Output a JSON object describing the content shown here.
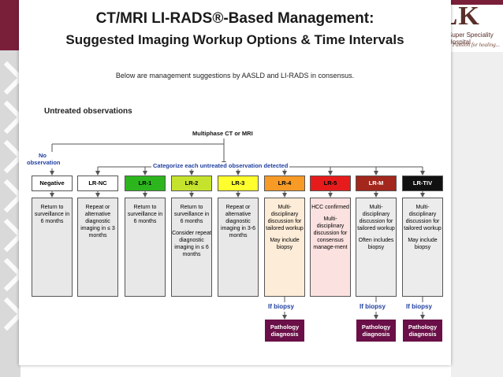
{
  "logo": {
    "text": "BLK",
    "subtitle": "Super Speciality Hospital",
    "tagline": "A Passion for healing..."
  },
  "title_line1": "CT/MRI LI-RADS®-Based Management:",
  "title_line2": "Suggested Imaging Workup Options & Time Intervals",
  "subtitle": "Below are management suggestions by AASLD and LI-RADS in consensus.",
  "section_title": "Untreated observations",
  "root_label": "Multiphase CT or MRI",
  "no_observation_label": "No observation",
  "categorize_label": "Categorize each untreated observation detected",
  "categories": [
    {
      "label": "Negative",
      "bg": "#ffffff",
      "fg": "#000000",
      "lines": [
        "Return to surveillance in 6 months"
      ]
    },
    {
      "label": "LR-NC",
      "bg": "#ffffff",
      "fg": "#000000",
      "lines": [
        "Repeat or alternative diagnostic imaging in ≤ 3 months"
      ]
    },
    {
      "label": "LR-1",
      "bg": "#2db51e",
      "fg": "#000000",
      "lines": [
        "Return to surveillance in 6 months"
      ]
    },
    {
      "label": "LR-2",
      "bg": "#c5e32c",
      "fg": "#000000",
      "lines": [
        "Return to surveillance in 6 months",
        "Consider repeat diagnostic imaging in ≤ 6 months"
      ]
    },
    {
      "label": "LR-3",
      "bg": "#ffff2e",
      "fg": "#000000",
      "lines": [
        "Repeat or alternative diagnostic imaging in 3-6 months"
      ]
    },
    {
      "label": "LR-4",
      "bg": "#f79a26",
      "fg": "#000000",
      "lines": [
        "Multi-disciplinary discussion for tailored workup",
        "May include biopsy"
      ]
    },
    {
      "label": "LR-5",
      "bg": "#e61c1c",
      "fg": "#000000",
      "lines": [
        "HCC confirmed",
        "Multi-disciplinary discussion for consensus manage-ment"
      ]
    },
    {
      "label": "LR-M",
      "bg": "#a3271d",
      "fg": "#ffffff",
      "lines": [
        "Multi-disciplinary discussion for tailored workup",
        "Often includes biopsy"
      ]
    },
    {
      "label": "LR-TIV",
      "bg": "#111111",
      "fg": "#ffffff",
      "lines": [
        "Multi-disciplinary discussion for tailored workup",
        "May include biopsy"
      ]
    }
  ],
  "colors": {
    "frame_top": "#7a1f3a",
    "arrow_blue": "#1f3f9f",
    "pathology_box": "#6a0f47",
    "body_negative_lr3": "#e8e8e8",
    "body_lr4": "#fdecd8",
    "body_lr5": "#fbe2e0",
    "body_lrm_lrtiv": "#ececec"
  },
  "if_biopsy_label": "If biopsy",
  "pathology_label": "Pathology diagnosis"
}
